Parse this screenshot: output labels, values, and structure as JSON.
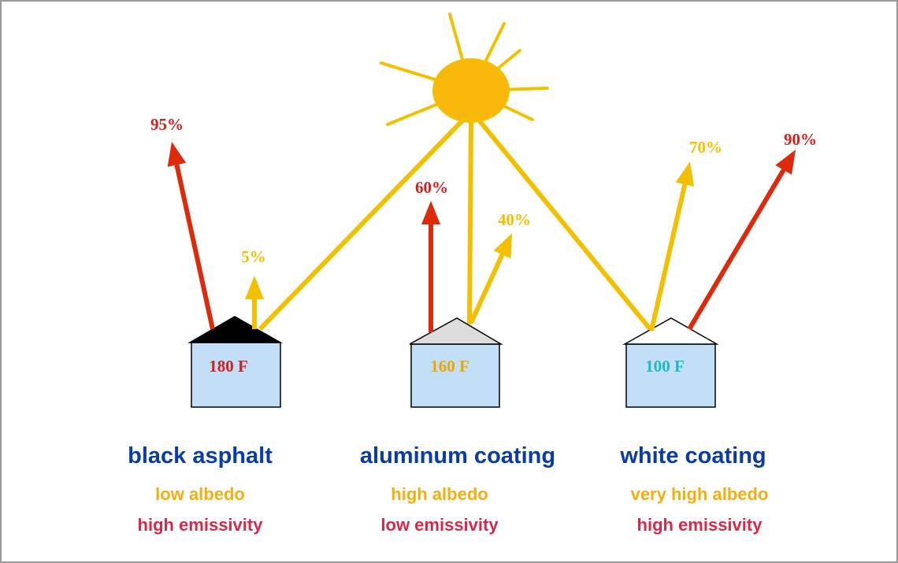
{
  "roofs": [
    {
      "name": "black asphalt",
      "temperature": "180 F",
      "albedo": "low albedo",
      "emissivity": "high emissivity",
      "emitted": "95%",
      "reflected": "5%"
    },
    {
      "name": "aluminum coating",
      "temperature": "160 F",
      "albedo": "high albedo",
      "emissivity": "low emissivity",
      "emitted": "60%",
      "reflected": "40%"
    },
    {
      "name": "white coating",
      "temperature": "100 F",
      "albedo": "very high albedo",
      "emissivity": "high emissivity",
      "emitted": "90%",
      "reflected": "70%"
    }
  ]
}
